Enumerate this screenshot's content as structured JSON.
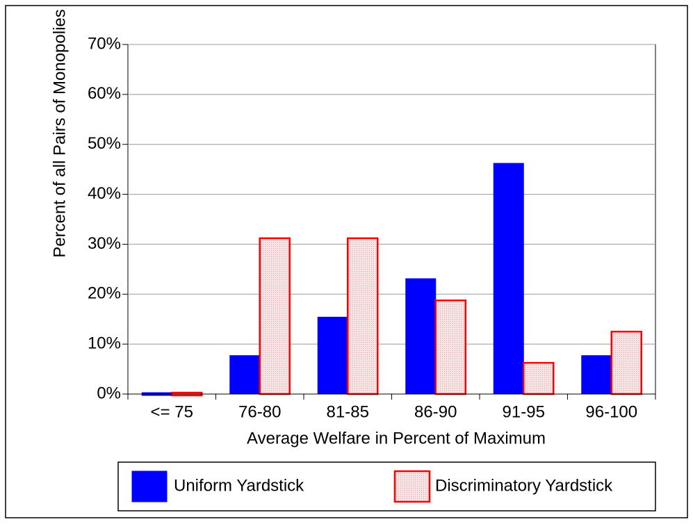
{
  "chart_data": {
    "type": "bar",
    "x_label": "Average Welfare in Percent of Maximum",
    "y_label": "Percent of all Pairs of Monopolies",
    "categories": [
      "<= 75",
      "76-80",
      "81-85",
      "86-90",
      "91-95",
      "96-100"
    ],
    "series": [
      {
        "name": "Uniform Yardstick",
        "color": "#0000ff",
        "values": [
          0,
          7.7,
          15.4,
          23.1,
          46.2,
          7.7
        ]
      },
      {
        "name": "Discriminatory Yardstick",
        "color": "#ff0000",
        "values": [
          0,
          31.2,
          31.2,
          18.75,
          6.25,
          12.5
        ]
      }
    ],
    "ylim": [
      0,
      70
    ],
    "yticks": [
      {
        "value": 0,
        "label": "0%"
      },
      {
        "value": 10,
        "label": "10%"
      },
      {
        "value": 20,
        "label": "20%"
      },
      {
        "value": 30,
        "label": "30%"
      },
      {
        "value": 40,
        "label": "40%"
      },
      {
        "value": 50,
        "label": "50%"
      },
      {
        "value": 60,
        "label": "60%"
      },
      {
        "value": 70,
        "label": "70%"
      }
    ],
    "grid": true,
    "legend": "bottom"
  }
}
